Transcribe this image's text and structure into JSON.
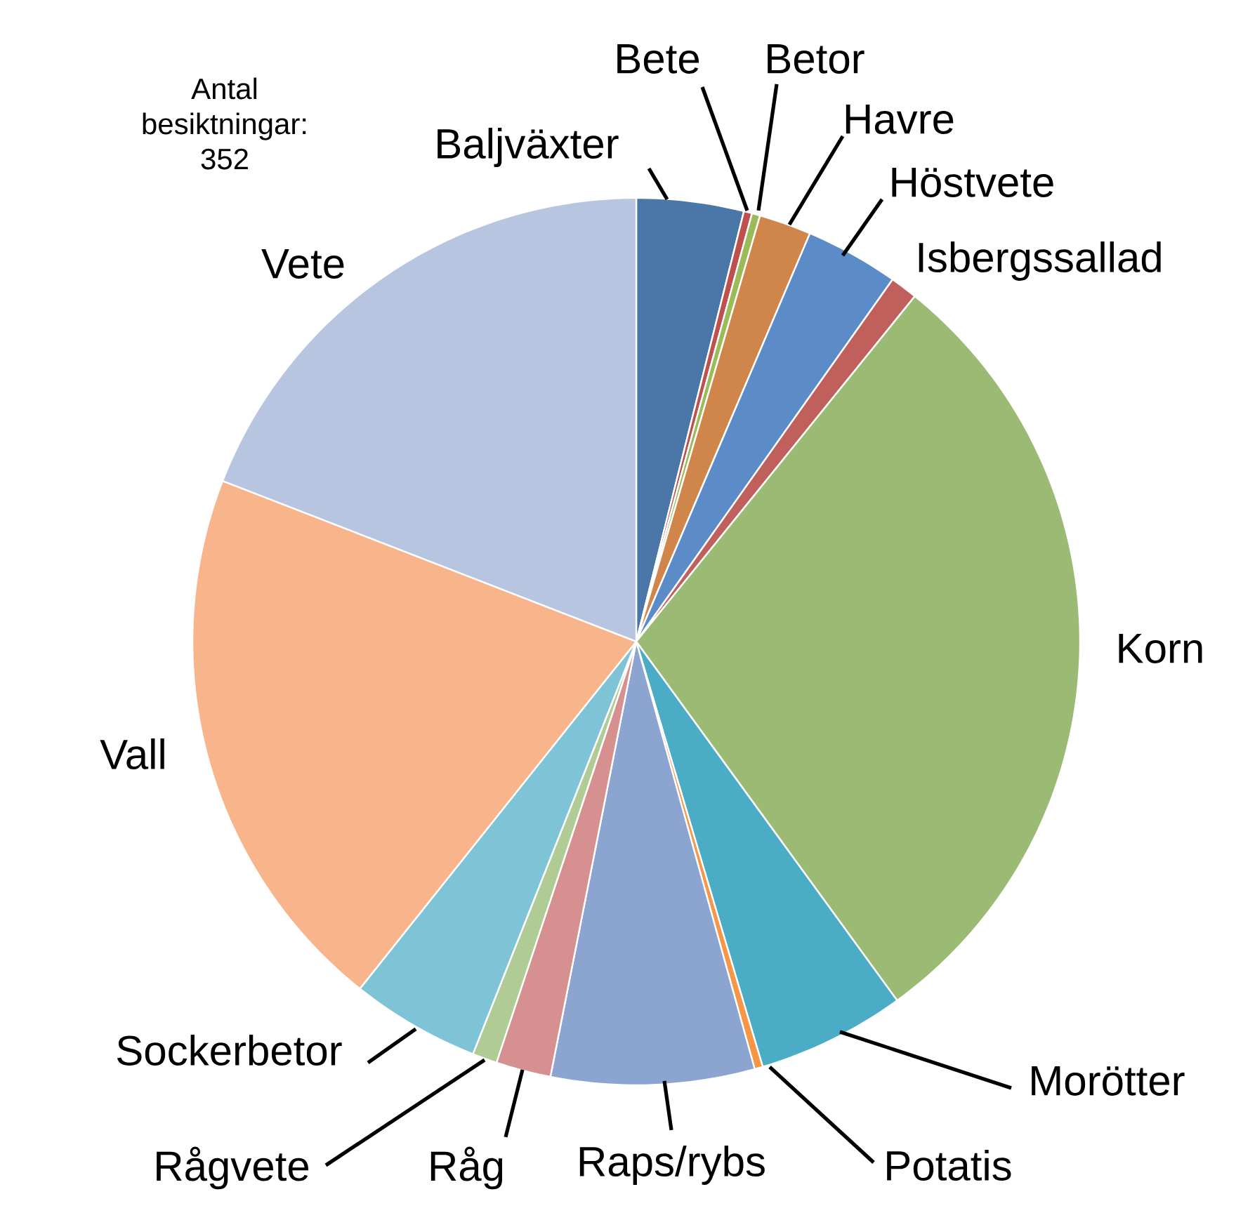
{
  "chart_data": {
    "type": "pie",
    "categories": [
      "Baljväxter",
      "Bete",
      "Betor",
      "Havre",
      "Höstvete",
      "Isbergssallad",
      "Korn",
      "Morötter",
      "Potatis",
      "Raps/rybs",
      "Råg",
      "Rågvete",
      "Sockerbetor",
      "Vall",
      "Vete"
    ],
    "values": [
      3.9,
      0.3,
      0.3,
      1.9,
      3.4,
      1.0,
      29.2,
      5.4,
      0.3,
      7.4,
      2.0,
      0.9,
      4.7,
      20.2,
      19.1
    ],
    "colors": [
      "#4a76a8",
      "#c0504d",
      "#9bbb59",
      "#d0864b",
      "#5b8cc8",
      "#c0605c",
      "#9bbb74",
      "#4bacc6",
      "#f79646",
      "#8ba4d0",
      "#d69090",
      "#b0cc94",
      "#7fc3d6",
      "#f8b48a",
      "#b7c5e0"
    ],
    "annotations": [
      "Antal besiktningar: 352"
    ]
  }
}
